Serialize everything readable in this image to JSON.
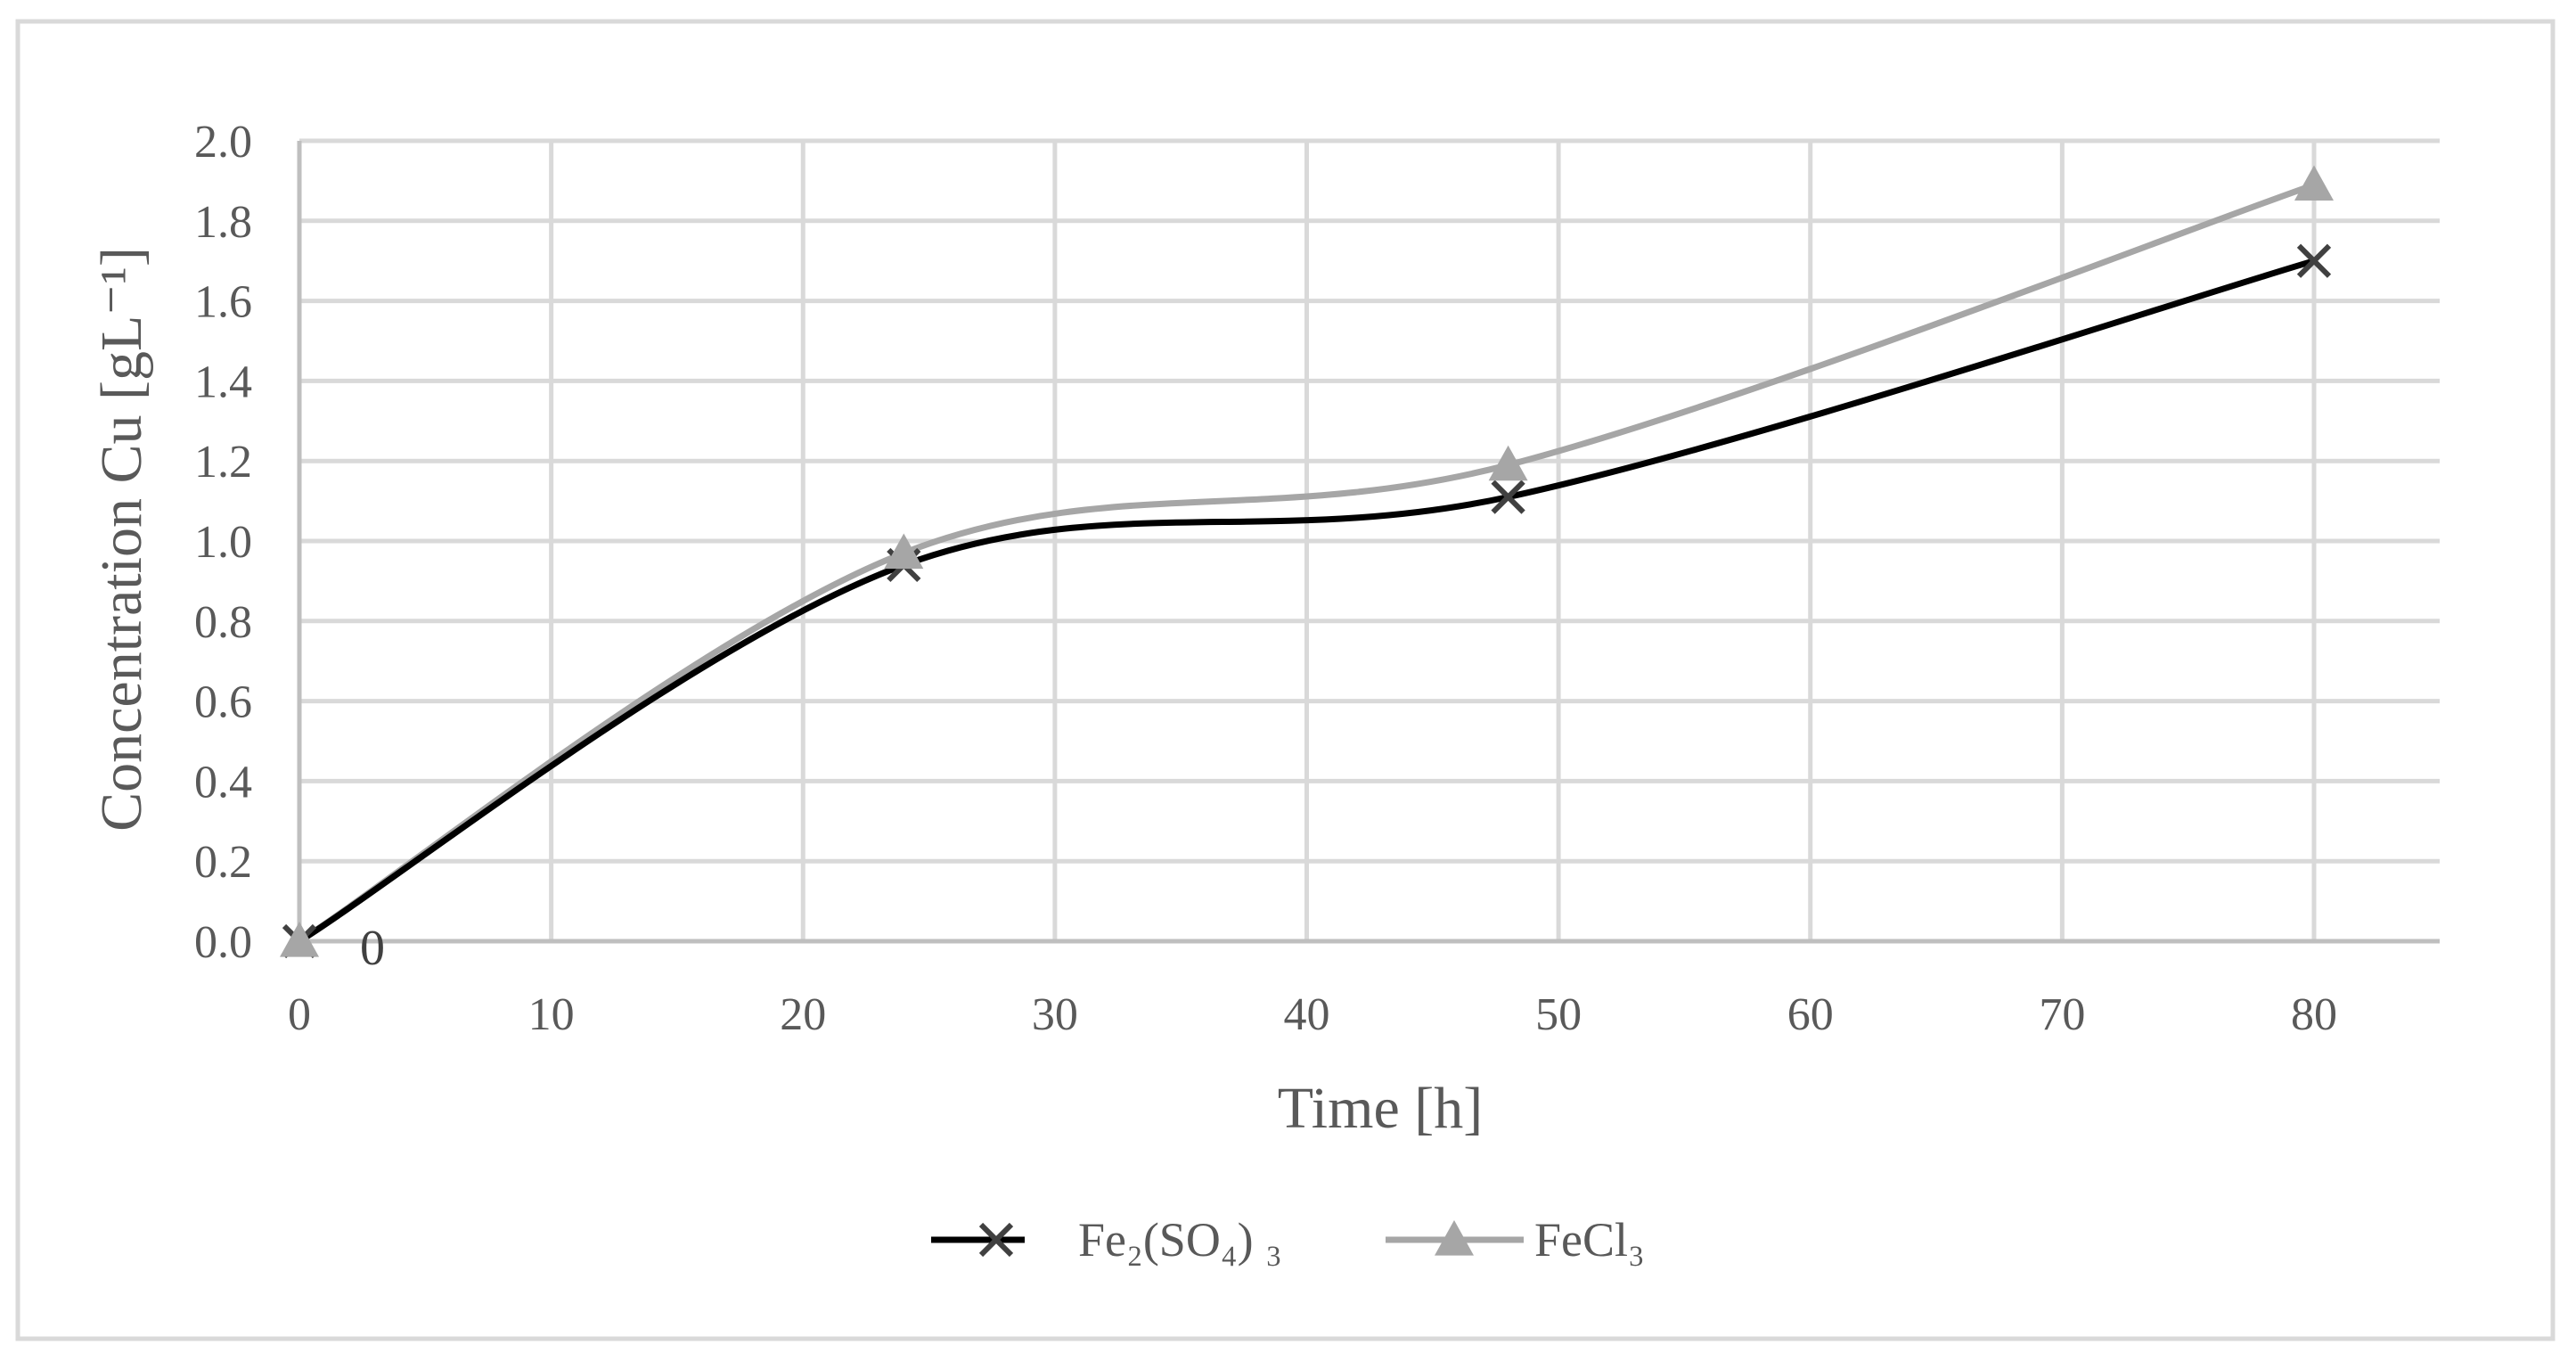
{
  "chart_data": {
    "type": "line",
    "title": "",
    "xlabel": "Time [h]",
    "ylabel": "Concentration Cu  [gL⁻¹]",
    "xlim": [
      0,
      85
    ],
    "ylim": [
      0,
      2.0
    ],
    "grid": true,
    "legend_position": "bottom",
    "x_ticks": [
      "0",
      "10",
      "20",
      "30",
      "40",
      "50",
      "60",
      "70",
      "80"
    ],
    "y_ticks": [
      "0.0",
      "0.2",
      "0.4",
      "0.6",
      "0.8",
      "1.0",
      "1.2",
      "1.4",
      "1.6",
      "1.8",
      "2.0"
    ],
    "annotations": [
      {
        "text": "0",
        "x": 0,
        "y": 0
      }
    ],
    "series": [
      {
        "name": "Fe₂(SO₄) ₃",
        "marker": "x",
        "color": "#000000",
        "x": [
          0,
          24,
          48,
          80
        ],
        "values": [
          0.0,
          0.94,
          1.11,
          1.7
        ]
      },
      {
        "name": "FeCl₃",
        "marker": "triangle",
        "color": "#A6A6A6",
        "x": [
          0,
          24,
          48,
          80
        ],
        "values": [
          0.0,
          0.97,
          1.19,
          1.89
        ]
      }
    ]
  }
}
